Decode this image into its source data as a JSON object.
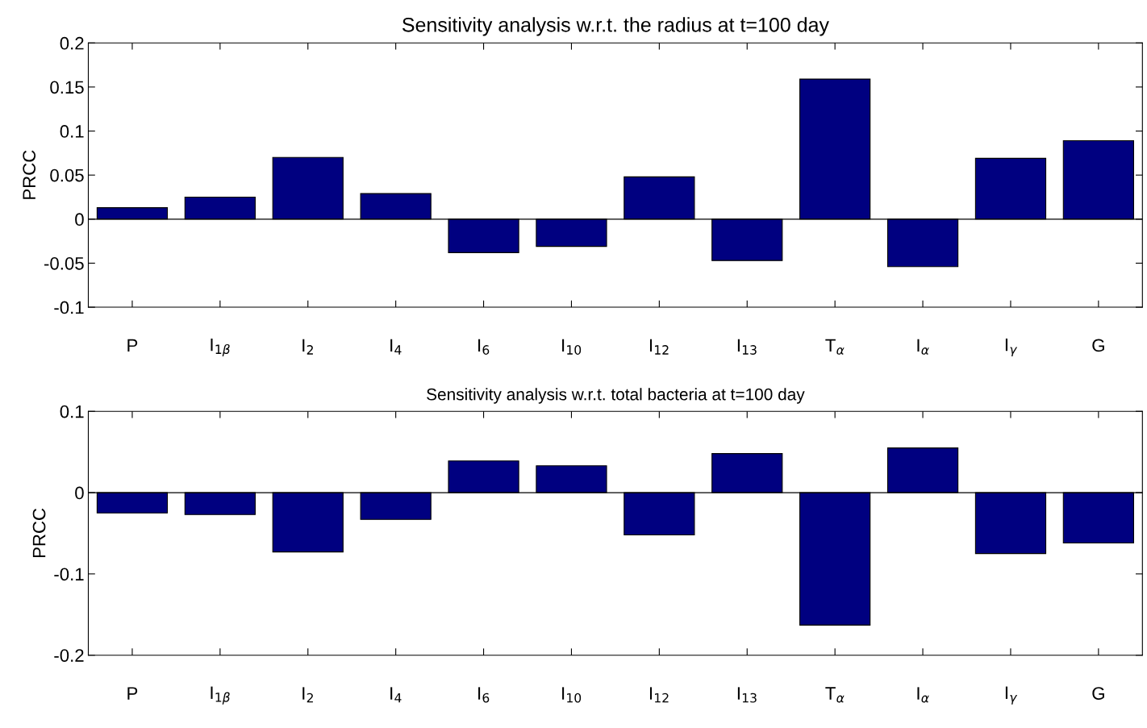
{
  "chart_data": [
    {
      "type": "bar",
      "title": "Sensitivity analysis w.r.t. the radius at t=100 day",
      "ylabel": "PRCC",
      "categories": [
        "P",
        "I$_{1β}$",
        "I$_{2}$",
        "I$_{4}$",
        "I$_{6}$",
        "I$_{10}$",
        "I$_{12}$",
        "I$_{13}$",
        "T$_{α}$",
        "I$_{α}$",
        "I$_{γ}$",
        "G"
      ],
      "values": [
        0.013,
        0.025,
        0.07,
        0.029,
        -0.038,
        -0.031,
        0.048,
        -0.047,
        0.159,
        -0.054,
        0.069,
        0.089
      ],
      "color": "#000080",
      "ylim": [
        -0.1,
        0.2
      ],
      "yticks": [
        -0.1,
        -0.05,
        0,
        0.05,
        0.1,
        0.15,
        0.2
      ],
      "grid": false,
      "legend": false,
      "ref_lines": [
        {
          "axis": "y",
          "value": 0,
          "color": "#000000"
        }
      ]
    },
    {
      "type": "bar",
      "title": "Sensitivity analysis w.r.t. total bacteria at t=100 day",
      "ylabel": "PRCC",
      "categories": [
        "P",
        "I$_{1β}$",
        "I$_{2}$",
        "I$_{4}$",
        "I$_{6}$",
        "I$_{10}$",
        "I$_{12}$",
        "I$_{13}$",
        "T$_{α}$",
        "I$_{α}$",
        "I$_{γ}$",
        "G"
      ],
      "values": [
        -0.025,
        -0.027,
        -0.073,
        -0.033,
        0.039,
        0.033,
        -0.052,
        0.048,
        -0.163,
        0.055,
        -0.075,
        -0.062
      ],
      "color": "#000080",
      "ylim": [
        -0.2,
        0.1
      ],
      "yticks": [
        -0.2,
        -0.1,
        0,
        0.1
      ],
      "grid": false,
      "legend": false,
      "ref_lines": [
        {
          "axis": "y",
          "value": 0,
          "color": "#000000"
        }
      ]
    }
  ]
}
